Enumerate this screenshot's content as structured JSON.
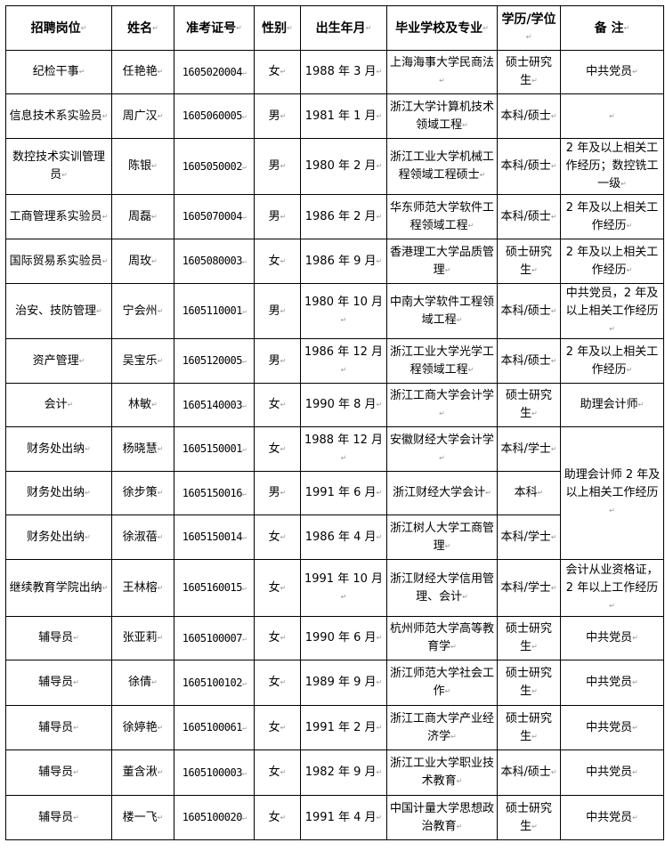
{
  "headers": [
    "招聘岗位",
    "姓名",
    "准考证号",
    "性别",
    "出生年月",
    "毕业学校及专业",
    "学历/学位",
    "备 注"
  ],
  "rows": [
    {
      "position": "纪检干事",
      "name": "任艳艳",
      "exam_id": "1605020004",
      "gender": "女",
      "birth": "1988 年 3 月",
      "school": "上海海事大学民商法",
      "degree": "硕士研究生",
      "remark": "中共党员"
    },
    {
      "position": "信息技术系实验员",
      "name": "周广汉",
      "exam_id": "1605060005",
      "gender": "男",
      "birth": "1981 年 1 月",
      "school": "浙江大学计算机技术领域工程",
      "degree": "本科/硕士",
      "remark": ""
    },
    {
      "position": "数控技术实训管理员",
      "name": "陈银",
      "exam_id": "1605050002",
      "gender": "男",
      "birth": "1980 年 2 月",
      "school": "浙江工业大学机械工程领域工程硕士",
      "degree": "本科/硕士",
      "remark": "2 年及以上相关工作经历；数控铣工一级"
    },
    {
      "position": "工商管理系实验员",
      "name": "周磊",
      "exam_id": "1605070004",
      "gender": "男",
      "birth": "1986 年 2 月",
      "school": "华东师范大学软件工程领域工程",
      "degree": "本科/硕士",
      "remark": "2 年及以上相关工作经历"
    },
    {
      "position": "国际贸易系实验员",
      "name": "周玫",
      "exam_id": "1605080003",
      "gender": "女",
      "birth": "1986 年 9 月",
      "school": "香港理工大学品质管理",
      "degree": "硕士研究生",
      "remark": "2 年及以上相关工作经历"
    },
    {
      "position": "治安、技防管理",
      "name": "宁会州",
      "exam_id": "1605110001",
      "gender": "男",
      "birth": "1980 年 10 月",
      "school": "中南大学软件工程领域工程",
      "degree": "本科/硕士",
      "remark": "中共党员，2 年及以上相关工作经历"
    },
    {
      "position": "资产管理",
      "name": "吴宝乐",
      "exam_id": "1605120005",
      "gender": "男",
      "birth": "1986 年 12 月",
      "school": "浙江工业大学光学工程领域工程",
      "degree": "本科/硕士",
      "remark": "2 年及以上相关工作经历"
    },
    {
      "position": "会计",
      "name": "林敏",
      "exam_id": "1605140003",
      "gender": "女",
      "birth": "1990 年 8 月",
      "school": "浙江工商大学会计学",
      "degree": "硕士研究生",
      "remark": "助理会计师"
    },
    {
      "position": "财务处出纳",
      "name": "杨晓慧",
      "exam_id": "1605150001",
      "gender": "女",
      "birth": "1988 年 12 月",
      "school": "安徽财经大学会计学",
      "degree": "本科/学士",
      "remark": "助理会计师 2 年及以上相关工作经历",
      "remark_rowspan": 3
    },
    {
      "position": "财务处出纳",
      "name": "徐步策",
      "exam_id": "1605150016",
      "gender": "男",
      "birth": "1991 年 6 月",
      "school": "浙江财经大学会计",
      "degree": "本科"
    },
    {
      "position": "财务处出纳",
      "name": "徐淑蓓",
      "exam_id": "1605150014",
      "gender": "女",
      "birth": "1986 年 4 月",
      "school": "浙江树人大学工商管理",
      "degree": "本科/学士"
    },
    {
      "position": "继续教育学院出纳",
      "name": "王林榕",
      "exam_id": "1605160015",
      "gender": "女",
      "birth": "1991 年 10 月",
      "school": "浙江财经大学信用管理、会计",
      "degree": "本科/学士",
      "remark": "会计从业资格证，2 年以上工作经历"
    },
    {
      "position": "辅导员",
      "name": "张亚莉",
      "exam_id": "1605100007",
      "gender": "女",
      "birth": "1990 年 6 月",
      "school": "杭州师范大学高等教育学",
      "degree": "硕士研究生",
      "remark": "中共党员"
    },
    {
      "position": "辅导员",
      "name": "徐倩",
      "exam_id": "1605100102",
      "gender": "女",
      "birth": "1989 年 9 月",
      "school": "浙江师范大学社会工作",
      "degree": "硕士研究生",
      "remark": "中共党员"
    },
    {
      "position": "辅导员",
      "name": "徐婷艳",
      "exam_id": "1605100061",
      "gender": "女",
      "birth": "1991 年 2 月",
      "school": "浙江工商大学产业经济学",
      "degree": "硕士研究生",
      "remark": "中共党员"
    },
    {
      "position": "辅导员",
      "name": "董含湫",
      "exam_id": "1605100003",
      "gender": "女",
      "birth": "1982 年 9 月",
      "school": "浙江工业大学职业技术教育",
      "degree": "本科/硕士",
      "remark": "中共党员"
    },
    {
      "position": "辅导员",
      "name": "楼一飞",
      "exam_id": "1605100020",
      "gender": "女",
      "birth": "1991 年 4 月",
      "school": "中国计量大学思想政治教育",
      "degree": "硕士研究生",
      "remark": "中共党员"
    }
  ]
}
